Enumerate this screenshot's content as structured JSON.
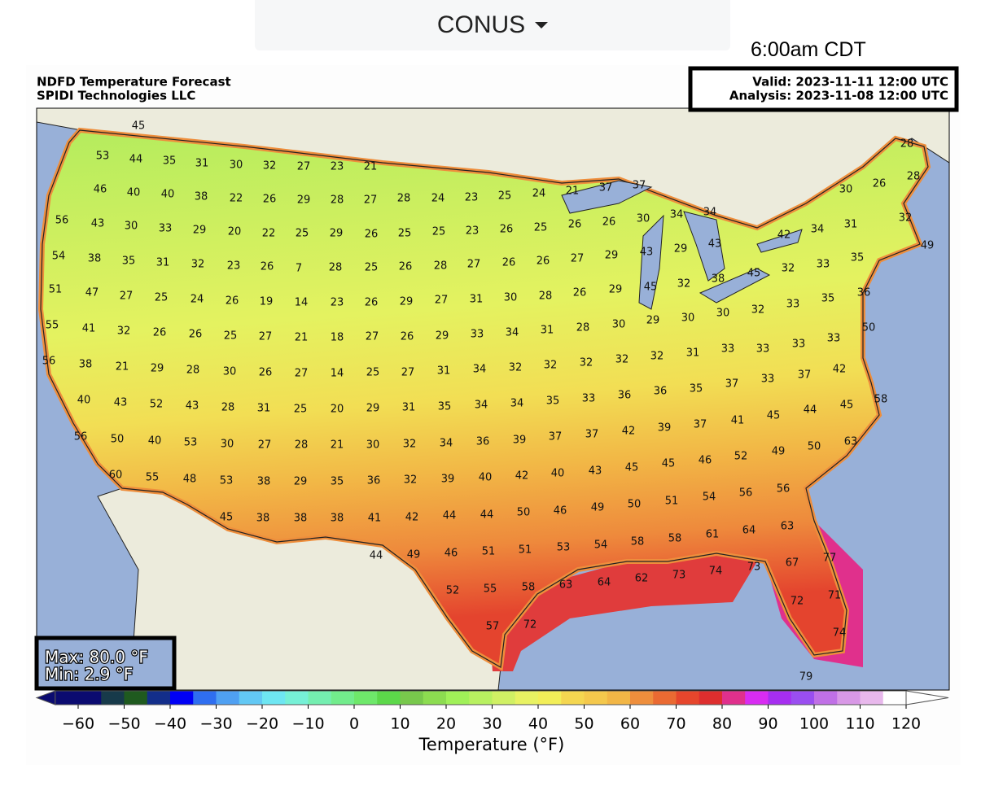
{
  "dropdown": {
    "label": "CONUS"
  },
  "local_time": "6:00am CDT",
  "map": {
    "title": [
      "NDFD Temperature Forecast",
      "SPIDI Technologies LLC"
    ],
    "valid": "Valid: 2023-11-11 12:00 UTC",
    "analysis": "Analysis: 2023-11-08 12:00 UTC",
    "max": "Max: 80.0 °F",
    "min": "Min: 2.9 °F",
    "labels": [
      45,
      53,
      44,
      35,
      31,
      30,
      32,
      27,
      23,
      21,
      28,
      46,
      40,
      40,
      38,
      22,
      26,
      29,
      28,
      27,
      28,
      24,
      23,
      25,
      24,
      21,
      37,
      37,
      30,
      26,
      28,
      56,
      43,
      30,
      33,
      29,
      20,
      22,
      25,
      29,
      26,
      25,
      25,
      23,
      26,
      25,
      26,
      26,
      30,
      34,
      34,
      32,
      31,
      34,
      42,
      54,
      38,
      35,
      31,
      32,
      23,
      26,
      7,
      28,
      25,
      26,
      28,
      27,
      26,
      26,
      27,
      29,
      43,
      29,
      43,
      49,
      35,
      33,
      32,
      45,
      51,
      47,
      27,
      25,
      24,
      26,
      19,
      14,
      23,
      26,
      29,
      27,
      31,
      30,
      28,
      26,
      29,
      45,
      32,
      38,
      36,
      35,
      33,
      32,
      55,
      41,
      32,
      26,
      26,
      25,
      27,
      21,
      18,
      27,
      26,
      29,
      33,
      34,
      31,
      28,
      30,
      29,
      30,
      30,
      50,
      33,
      33,
      33,
      33,
      31,
      56,
      38,
      21,
      29,
      28,
      30,
      26,
      27,
      14,
      25,
      27,
      31,
      34,
      32,
      32,
      32,
      32,
      32,
      42,
      37,
      33,
      37,
      35,
      36,
      36,
      40,
      43,
      52,
      43,
      28,
      31,
      25,
      20,
      29,
      31,
      35,
      34,
      34,
      35,
      33,
      58,
      45,
      44,
      45,
      41,
      37,
      39,
      42,
      37,
      37,
      56,
      50,
      40,
      53,
      30,
      27,
      28,
      21,
      30,
      32,
      34,
      36,
      39,
      63,
      50,
      49,
      52,
      46,
      45,
      45,
      43,
      40,
      60,
      55,
      48,
      53,
      38,
      29,
      35,
      36,
      32,
      39,
      40,
      42,
      56,
      56,
      54,
      51,
      50,
      49,
      46,
      45,
      38,
      38,
      38,
      41,
      42,
      44,
      44,
      50,
      63,
      64,
      61,
      58,
      58,
      54,
      53,
      44,
      49,
      46,
      51,
      51,
      77,
      67,
      73,
      74,
      73,
      62,
      64,
      63,
      58,
      55,
      52,
      71,
      72,
      57,
      72,
      74,
      79
    ]
  },
  "colorbar": {
    "label": "Temperature (°F)",
    "clim": [
      -65,
      120
    ],
    "ticks": [
      {
        "value": -60,
        "label": "−60"
      },
      {
        "value": -50,
        "label": "−50"
      },
      {
        "value": -40,
        "label": "−40"
      },
      {
        "value": -30,
        "label": "−30"
      },
      {
        "value": -20,
        "label": "−20"
      },
      {
        "value": -10,
        "label": "−10"
      },
      0,
      10,
      20,
      30,
      40,
      50,
      60,
      70,
      80,
      90,
      100,
      110,
      120
    ],
    "colors": [
      "#0b0b70",
      "#0b0b70",
      "#173a4a",
      "#1f5a1f",
      "#132e8a",
      "#0000f5",
      "#2f6ef0",
      "#4fa0f2",
      "#62c8f4",
      "#6ee6f2",
      "#76f0d6",
      "#74eeb0",
      "#72ec8c",
      "#6ee86a",
      "#5cd84a",
      "#78c84c",
      "#8cdc50",
      "#a0f058",
      "#b8f060",
      "#d0f064",
      "#e8f262",
      "#f2ee58",
      "#f4d650",
      "#f4c84c",
      "#f2b646",
      "#ee8e3c",
      "#ea6a32",
      "#e6462c",
      "#de2e2e",
      "#e0308c",
      "#d82cf2",
      "#a62ef0",
      "#9a4ef0",
      "#c070e6",
      "#d898e6",
      "#e8b8ec",
      "#ffffff"
    ],
    "extend_colors": [
      "#0b0b70",
      "#ffffff"
    ]
  }
}
